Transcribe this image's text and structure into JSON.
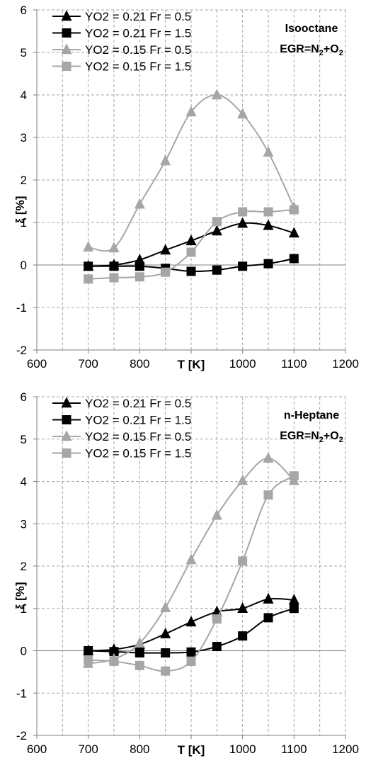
{
  "chart_data": [
    {
      "type": "line",
      "xlabel": "T [K]",
      "ylabel": "ξ [%]",
      "xlim": [
        600,
        1200
      ],
      "ylim": [
        -2,
        6
      ],
      "xticks": [
        600,
        700,
        800,
        900,
        1000,
        1100,
        1200
      ],
      "xtick_labels": [
        "600",
        "700",
        "800",
        "",
        "1000",
        "1100",
        "1200"
      ],
      "yticks": [
        -2,
        -1,
        0,
        1,
        2,
        3,
        4,
        5,
        6
      ],
      "grid": true,
      "legend_position": "top-left",
      "annotation": {
        "fuel": "Isooctane",
        "egr_prefix": "EGR=N",
        "egr_sub1": "2",
        "egr_mid": "+O",
        "egr_sub2": "2"
      },
      "x": [
        700,
        750,
        800,
        850,
        900,
        950,
        1000,
        1050,
        1100
      ],
      "series": [
        {
          "name": "YO2 = 0.21 Fr = 0.5",
          "color": "#000000",
          "marker": "triangle",
          "values": [
            -0.03,
            0.0,
            0.12,
            0.35,
            0.57,
            0.8,
            0.98,
            0.93,
            0.75
          ]
        },
        {
          "name": "YO2 = 0.21 Fr = 1.5",
          "color": "#000000",
          "marker": "square",
          "values": [
            -0.03,
            -0.03,
            -0.03,
            -0.08,
            -0.15,
            -0.12,
            -0.03,
            0.03,
            0.15
          ]
        },
        {
          "name": "YO2 = 0.15 Fr = 0.5",
          "color": "#a6a6a6",
          "marker": "triangle",
          "values": [
            0.42,
            0.4,
            1.43,
            2.45,
            3.6,
            4.0,
            3.55,
            2.65,
            1.35
          ]
        },
        {
          "name": "YO2 = 0.15 Fr = 1.5",
          "color": "#a6a6a6",
          "marker": "square",
          "values": [
            -0.33,
            -0.3,
            -0.28,
            -0.17,
            0.3,
            1.02,
            1.25,
            1.25,
            1.3
          ]
        }
      ]
    },
    {
      "type": "line",
      "xlabel": "T [K]",
      "ylabel": "ξ [%]",
      "xlim": [
        600,
        1200
      ],
      "ylim": [
        -2,
        6
      ],
      "xticks": [
        600,
        700,
        800,
        900,
        1000,
        1100,
        1200
      ],
      "xtick_labels": [
        "600",
        "700",
        "800",
        "",
        "1000",
        "1100",
        "1200"
      ],
      "yticks": [
        -2,
        -1,
        0,
        1,
        2,
        3,
        4,
        5,
        6
      ],
      "grid": true,
      "legend_position": "top-left",
      "annotation": {
        "fuel": "n-Heptane",
        "egr_prefix": "EGR=N",
        "egr_sub1": "2",
        "egr_mid": "+O",
        "egr_sub2": "2"
      },
      "x": [
        700,
        750,
        800,
        850,
        900,
        950,
        1000,
        1050,
        1100
      ],
      "series": [
        {
          "name": "YO2 = 0.21 Fr = 0.5",
          "color": "#000000",
          "marker": "triangle",
          "values": [
            0.0,
            0.03,
            0.15,
            0.4,
            0.68,
            0.92,
            1.0,
            1.22,
            1.2
          ]
        },
        {
          "name": "YO2 = 0.21 Fr = 1.5",
          "color": "#000000",
          "marker": "square",
          "values": [
            0.0,
            -0.02,
            -0.05,
            -0.05,
            -0.03,
            0.1,
            0.35,
            0.78,
            1.0
          ]
        },
        {
          "name": "YO2 = 0.15 Fr = 0.5",
          "color": "#a6a6a6",
          "marker": "triangle",
          "values": [
            -0.3,
            -0.2,
            0.18,
            1.02,
            2.15,
            3.2,
            4.02,
            4.55,
            4.02
          ]
        },
        {
          "name": "YO2 = 0.15 Fr = 1.5",
          "color": "#a6a6a6",
          "marker": "square",
          "values": [
            -0.22,
            -0.25,
            -0.35,
            -0.48,
            -0.25,
            0.75,
            2.12,
            3.68,
            4.13
          ]
        }
      ]
    }
  ]
}
